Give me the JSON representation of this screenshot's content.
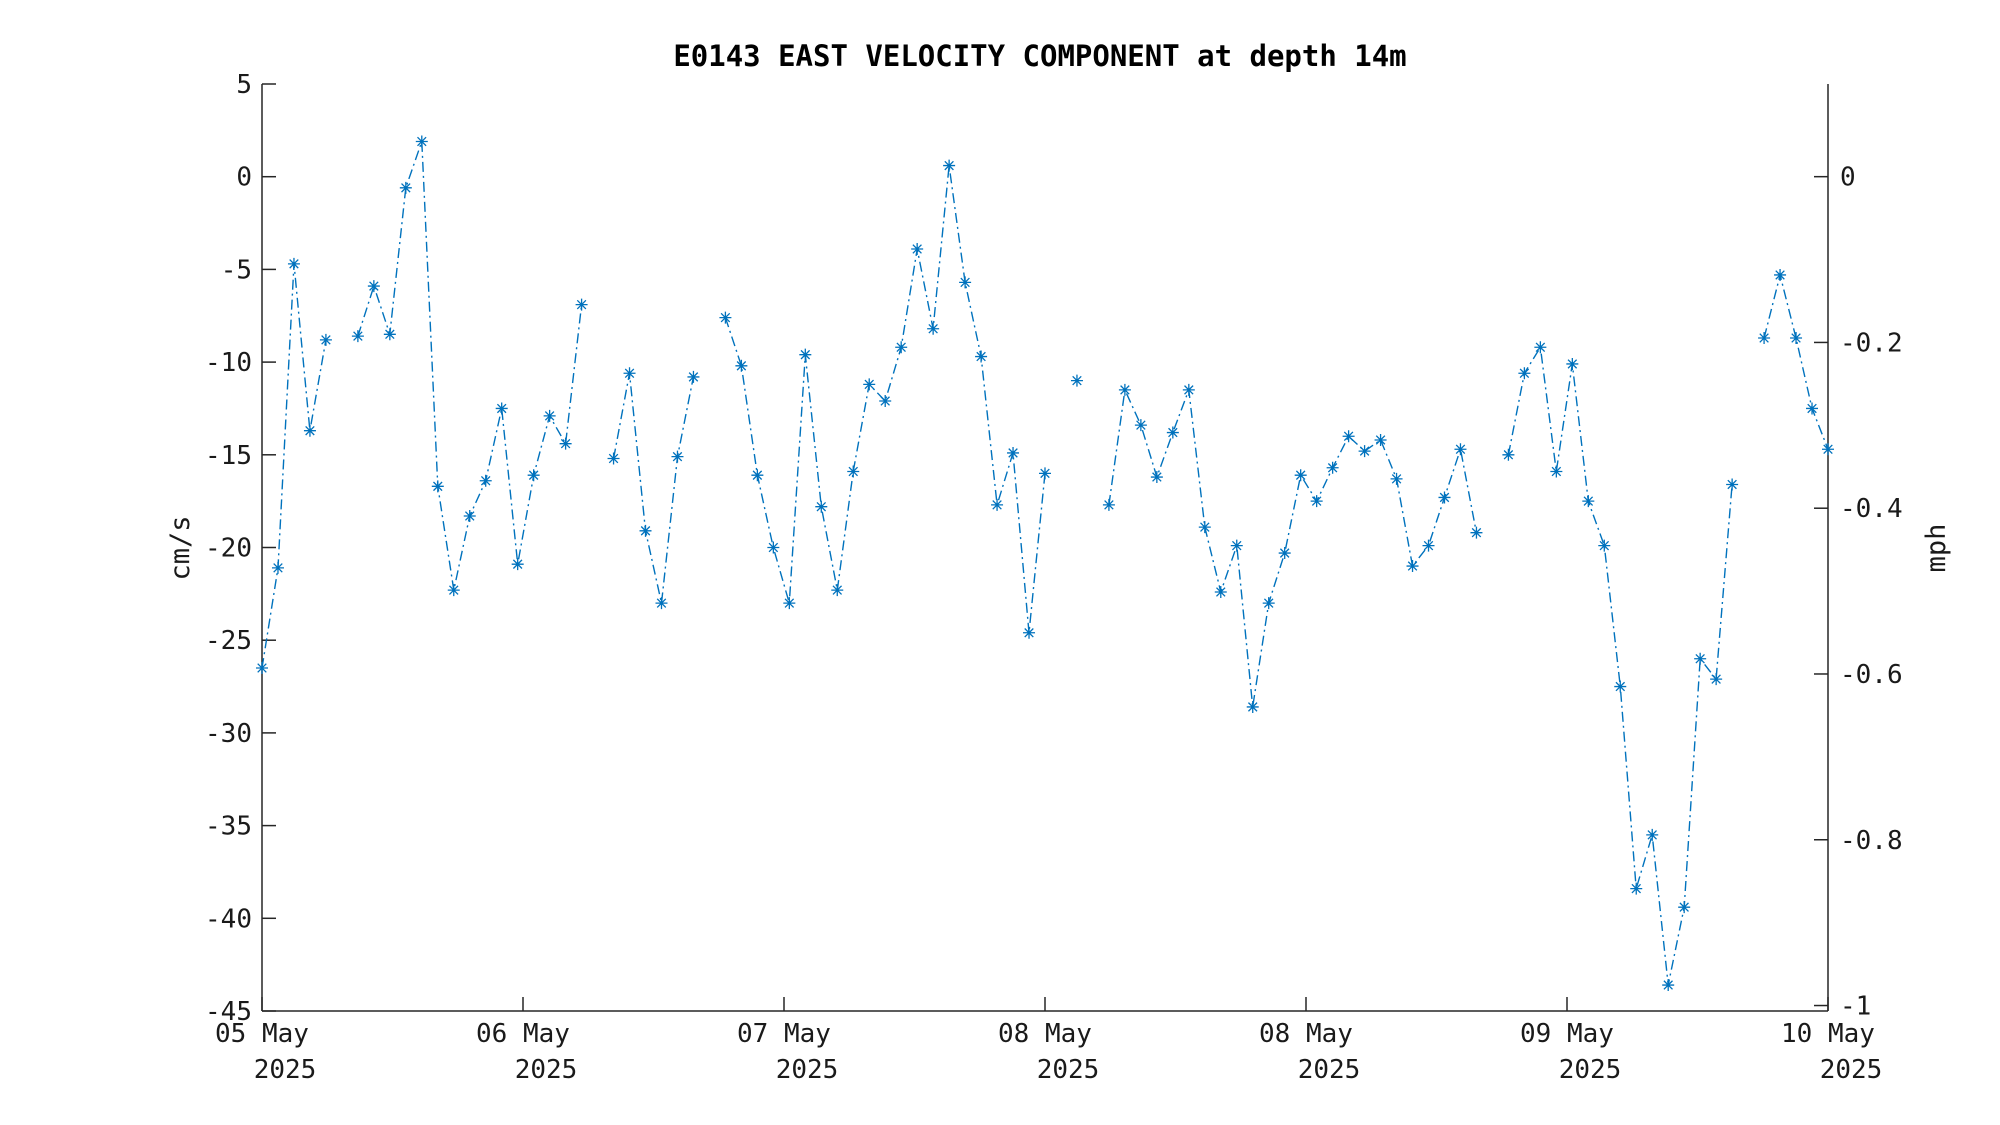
{
  "chart_data": {
    "type": "line",
    "title": "E0143 EAST VELOCITY COMPONENT at depth 14m",
    "ylabel": "cm/s",
    "y2label": "mph",
    "ylim": [
      -45,
      5
    ],
    "y2lim": [
      -1.0066,
      0.1118
    ],
    "yticks": [
      5,
      0,
      -5,
      -10,
      -15,
      -20,
      -25,
      -30,
      -35,
      -40,
      -45
    ],
    "y2ticks": [
      0,
      -0.2,
      -0.4,
      -0.6,
      -0.8,
      -1
    ],
    "y2ticklabels": [
      "0",
      "-0.2",
      "-0.4",
      "-0.6",
      "-0.8",
      "-1"
    ],
    "xticks": [
      {
        "day": "05 May",
        "year": "2025"
      },
      {
        "day": "06 May",
        "year": "2025"
      },
      {
        "day": "07 May",
        "year": "2025"
      },
      {
        "day": "08 May",
        "year": "2025"
      },
      {
        "day": "08 May",
        "year": "2025"
      },
      {
        "day": "09 May",
        "year": "2025"
      },
      {
        "day": "10 May",
        "year": "2025"
      }
    ],
    "grid": false,
    "line_style": "dash-dot",
    "marker": "asterisk",
    "series_color": "#0072bd",
    "series": [
      {
        "values": [
          -26.5,
          -21.1,
          -4.7,
          -13.7,
          -8.8,
          null,
          -8.6,
          -5.9,
          -8.5,
          -0.6,
          1.9,
          -16.7,
          -22.3,
          -18.3,
          -16.4,
          -12.5,
          -20.9,
          -16.1,
          -12.9,
          -14.4,
          -6.9,
          null,
          -15.2,
          -10.6,
          -19.1,
          -23.0,
          -15.1,
          -10.8,
          null,
          -7.6,
          -10.2,
          -16.1,
          -20.0,
          -23.0,
          -9.6,
          -17.8,
          -22.3,
          -15.9,
          -11.2,
          -12.1,
          -9.2,
          -3.9,
          -8.2,
          0.6,
          -5.7,
          -9.7,
          -17.7,
          -14.9,
          -24.6,
          -16.0,
          null,
          -11.0,
          null,
          -17.7,
          -11.5,
          -13.4,
          -16.2,
          -13.8,
          -11.5,
          -18.9,
          -22.4,
          -19.9,
          -28.6,
          -23.0,
          -20.3,
          -16.1,
          -17.5,
          -15.7,
          -14.0,
          -14.8,
          -14.2,
          -16.3,
          -21.0,
          -19.9,
          -17.3,
          -14.7,
          -19.2,
          null,
          -15.0,
          -10.6,
          -9.2,
          -15.9,
          -10.1,
          -17.5,
          -19.9,
          -27.5,
          -38.4,
          -35.5,
          -43.6,
          -39.4,
          -26.0,
          -27.1,
          -16.6,
          null,
          -8.7,
          -5.3,
          -8.7,
          -12.5,
          -14.7
        ]
      }
    ]
  }
}
